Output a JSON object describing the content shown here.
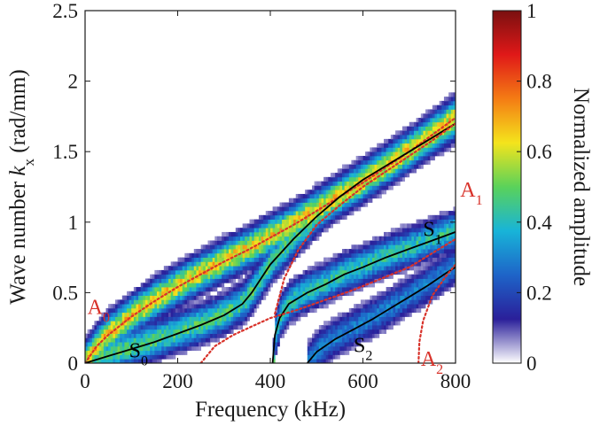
{
  "chart_data": {
    "type": "heatmap",
    "title": "",
    "xlabel_main": "Frequency ",
    "xlabel_unit": "(kHz)",
    "ylabel_main": "Wave number ",
    "ylabel_symbol": "k",
    "ylabel_subscript": "x",
    "ylabel_unit": " (rad/mm)",
    "xlim": [
      0,
      800
    ],
    "ylim": [
      0,
      2.5
    ],
    "x_ticks": [
      0,
      200,
      400,
      600,
      800
    ],
    "y_ticks": [
      0,
      0.5,
      1,
      1.5,
      2,
      2.5
    ],
    "x_tick_labels": [
      "0",
      "200",
      "400",
      "600",
      "800"
    ],
    "y_tick_labels": [
      "0",
      "0.5",
      "1",
      "1.5",
      "2",
      "2.5"
    ],
    "colorbar": {
      "label": "Normalized amplitude",
      "range": [
        0,
        1
      ],
      "ticks": [
        0,
        0.2,
        0.4,
        0.6,
        0.8,
        1
      ],
      "tick_labels": [
        "0",
        "0.2",
        "0.4",
        "0.6",
        "0.8",
        "1"
      ],
      "colormap": "jet-white",
      "colors": [
        "#ffffff",
        "#2a1f9a",
        "#1e64c8",
        "#18b4d8",
        "#5ad25a",
        "#f4e41c",
        "#f47c14",
        "#e01818",
        "#7a1010"
      ]
    },
    "series": [
      {
        "name": "A0",
        "label_main": "A",
        "label_sub": "0",
        "style": "red-dotted",
        "color": "#d8322a",
        "x": [
          0,
          25,
          50,
          100,
          150,
          200,
          250,
          300,
          350,
          400,
          450,
          500,
          550,
          600,
          650,
          700,
          750,
          800
        ],
        "y": [
          0,
          0.12,
          0.2,
          0.33,
          0.44,
          0.54,
          0.63,
          0.72,
          0.8,
          0.89,
          0.98,
          1.08,
          1.18,
          1.28,
          1.39,
          1.5,
          1.62,
          1.74
        ]
      },
      {
        "name": "S0",
        "label_main": "S",
        "label_sub": "0",
        "style": "black-solid",
        "color": "#000000",
        "x": [
          0,
          50,
          100,
          150,
          200,
          250,
          300,
          340,
          360,
          380,
          400,
          450,
          500,
          550,
          600,
          650,
          700,
          750,
          800
        ],
        "y": [
          0,
          0.05,
          0.1,
          0.15,
          0.21,
          0.27,
          0.34,
          0.42,
          0.5,
          0.6,
          0.7,
          0.88,
          1.04,
          1.18,
          1.3,
          1.4,
          1.5,
          1.6,
          1.7
        ]
      },
      {
        "name": "A1",
        "label_main": "A",
        "label_sub": "1",
        "style": "red-dotted",
        "color": "#d8322a",
        "x": [
          410,
          430,
          460,
          500,
          550,
          600,
          650,
          700,
          750,
          800
        ],
        "y": [
          0.35,
          0.6,
          0.8,
          0.98,
          1.12,
          1.25,
          1.36,
          1.47,
          1.58,
          1.7
        ]
      },
      {
        "name": "S1",
        "label_main": "S",
        "label_sub": "1",
        "style": "black-solid",
        "color": "#000000",
        "x": [
          405,
          410,
          420,
          440,
          480,
          520,
          560,
          600,
          650,
          700,
          750,
          800
        ],
        "y": [
          0.0,
          0.2,
          0.32,
          0.42,
          0.5,
          0.56,
          0.63,
          0.68,
          0.75,
          0.81,
          0.87,
          0.93
        ]
      },
      {
        "name": "S2",
        "label_main": "S",
        "label_sub": "2",
        "style": "black-solid",
        "color": "#000000",
        "x": [
          480,
          500,
          540,
          580,
          620,
          660,
          700,
          740,
          780,
          800
        ],
        "y": [
          0.0,
          0.08,
          0.17,
          0.24,
          0.31,
          0.39,
          0.47,
          0.55,
          0.64,
          0.68
        ]
      },
      {
        "name": "A2",
        "label_main": "A",
        "label_sub": "2",
        "style": "red-dotted",
        "color": "#d8322a",
        "x": [
          720,
          722,
          730,
          750,
          780,
          800
        ],
        "y": [
          0.0,
          0.15,
          0.3,
          0.48,
          0.62,
          0.7
        ]
      },
      {
        "name": "A1-lower",
        "style": "red-dotted",
        "color": "#d8322a",
        "x": [
          250,
          280,
          320,
          360,
          400,
          420,
          460,
          520,
          580,
          640,
          700,
          760,
          800
        ],
        "y": [
          0.0,
          0.12,
          0.2,
          0.26,
          0.32,
          0.34,
          0.38,
          0.45,
          0.52,
          0.6,
          0.68,
          0.8,
          0.88
        ]
      }
    ],
    "mode_labels": [
      {
        "series": "A0",
        "x": 5,
        "y": 0.35,
        "color": "#d8322a"
      },
      {
        "series": "S0",
        "x": 95,
        "y": 0.04,
        "color": "#000000"
      },
      {
        "series": "A1",
        "x": 810,
        "y": 1.18,
        "color": "#d8322a"
      },
      {
        "series": "S1",
        "x": 730,
        "y": 0.9,
        "color": "#000000"
      },
      {
        "series": "S2",
        "x": 580,
        "y": 0.08,
        "color": "#000000"
      },
      {
        "series": "A2",
        "x": 725,
        "y": -0.02,
        "color": "#d8322a"
      }
    ],
    "amplitude_bands": [
      {
        "series": "A0",
        "intensity": 0.75
      },
      {
        "series": "S0",
        "intensity": 0.55
      },
      {
        "series": "S1",
        "intensity": 0.5
      },
      {
        "series": "S2",
        "intensity": 0.35
      }
    ]
  }
}
